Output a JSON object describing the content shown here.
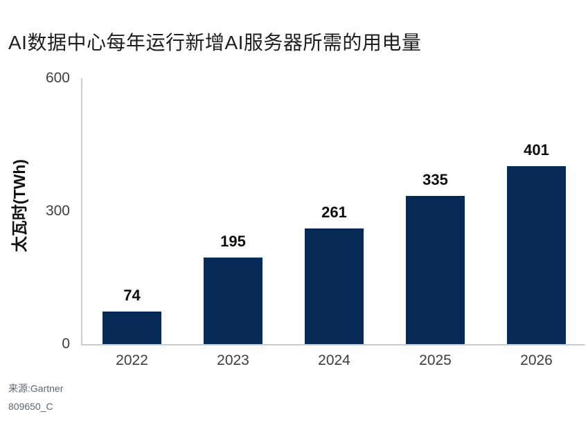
{
  "chart_data": {
    "type": "bar",
    "title": "AI数据中心每年运行新增AI服务器所需的用电量",
    "categories": [
      "2022",
      "2023",
      "2024",
      "2025",
      "2026"
    ],
    "values": [
      74,
      195,
      261,
      335,
      401
    ],
    "xlabel": "",
    "ylabel": "太瓦时(TWh)",
    "ylim": [
      0,
      600
    ],
    "yticks": [
      0,
      300,
      600
    ],
    "grid": false,
    "legend": false,
    "value_labels_shown": true,
    "bar_color": "#082a57"
  },
  "source": {
    "line1": "来源:Gartner",
    "line2": "809650_C"
  },
  "colors": {
    "bar": "#082a57",
    "axis_line": "#c9cccd",
    "tick_text": "#3f3f3f",
    "category_text": "#3d3d3d",
    "value_text": "#0d0d0d",
    "title_text": "#1d1d1d",
    "source_text": "#5d6670",
    "background": "#ffffff"
  }
}
